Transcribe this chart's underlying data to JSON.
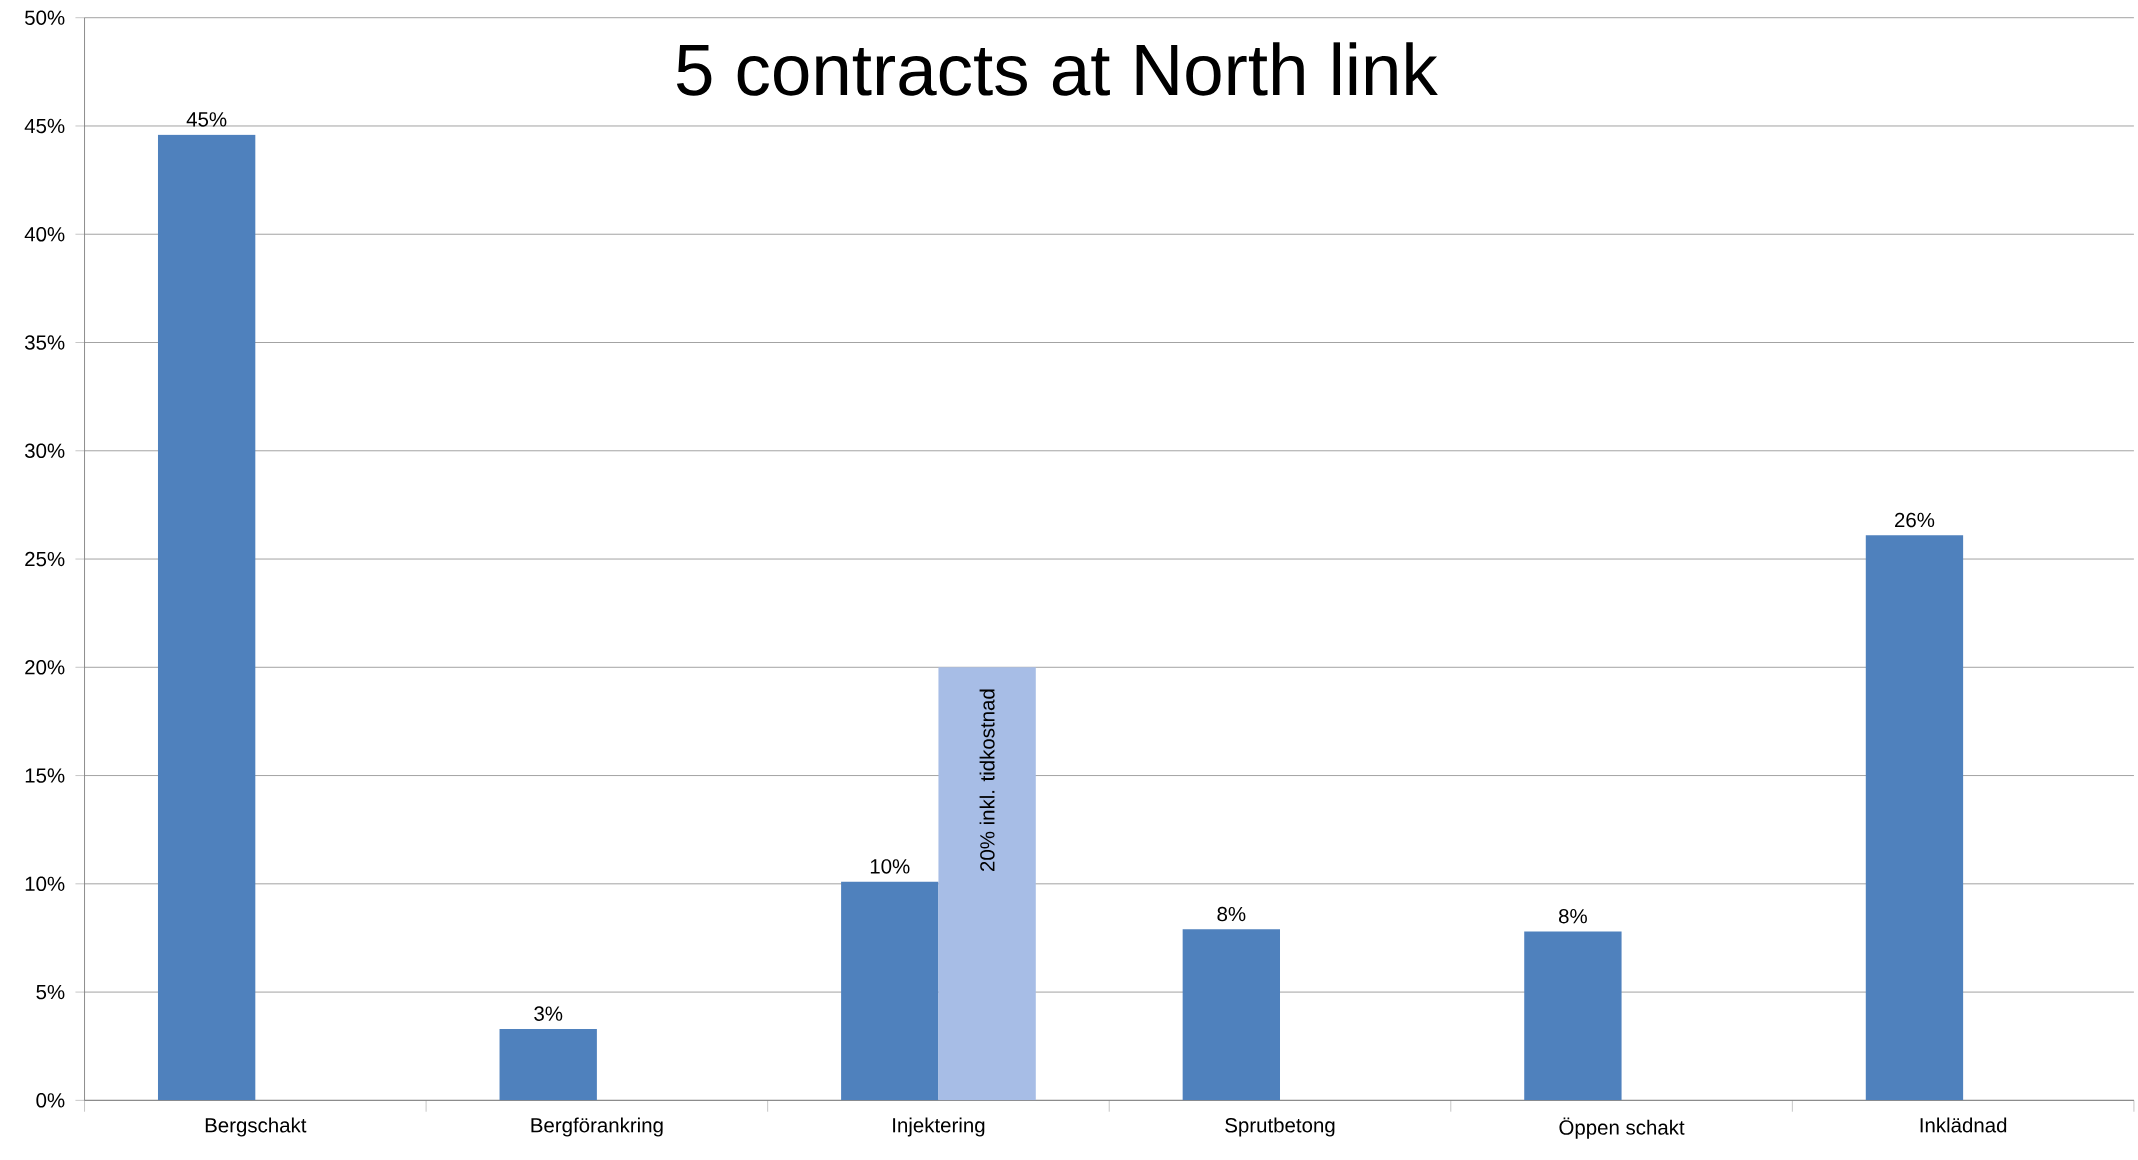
{
  "chart_data": {
    "type": "bar",
    "title": "5 contracts at North link",
    "categories": [
      "Bergschakt",
      "Bergförankring",
      "Injektering",
      "Sprutbetong",
      "Öppen schakt",
      "Inklädnad"
    ],
    "series": [
      {
        "color": "#4f81bd",
        "values": [
          44.6,
          3.3,
          10.1,
          7.9,
          7.8,
          26.1
        ],
        "value_labels": [
          "45%",
          "3%",
          "10%",
          "8%",
          "8%",
          "26%"
        ]
      },
      {
        "color": "#a7bde6",
        "values": [
          null,
          null,
          20,
          null,
          null,
          null
        ],
        "value_labels": [
          null,
          null,
          "20%   inkl. tidkostnad",
          null,
          null,
          null
        ]
      }
    ],
    "ylim": [
      0,
      50
    ],
    "yticks": [
      {
        "value": 0,
        "label": "0%"
      },
      {
        "value": 5,
        "label": "5%"
      },
      {
        "value": 10,
        "label": "10%"
      },
      {
        "value": 15,
        "label": "15%"
      },
      {
        "value": 20,
        "label": "20%"
      },
      {
        "value": 25,
        "label": "25%"
      },
      {
        "value": 30,
        "label": "30%"
      },
      {
        "value": 35,
        "label": "35%"
      },
      {
        "value": 40,
        "label": "40%"
      },
      {
        "value": 45,
        "label": "45%"
      },
      {
        "value": 50,
        "label": "50%"
      }
    ],
    "grid": "y"
  }
}
